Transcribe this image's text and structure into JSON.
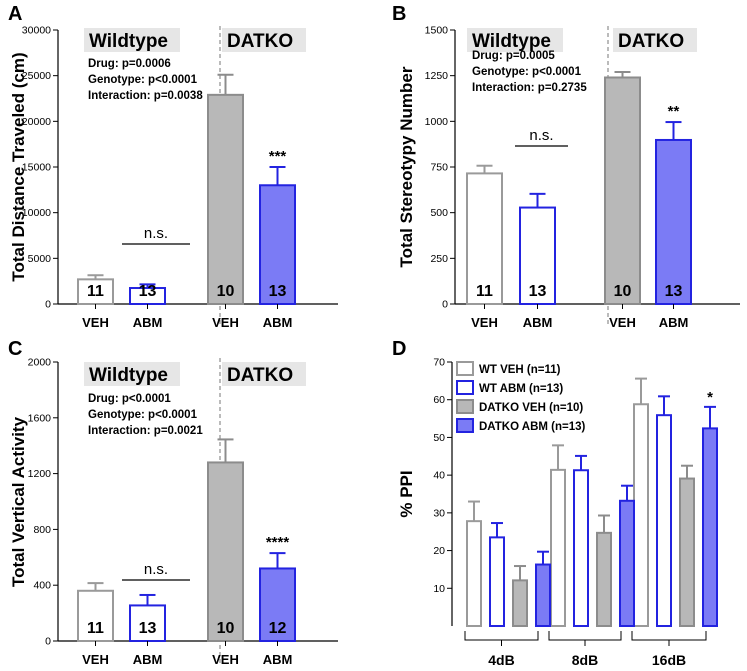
{
  "colors": {
    "wt_veh_stroke": "#9a9a9a",
    "wt_veh_fill": "#ffffff",
    "wt_abm_stroke": "#2323e0",
    "wt_abm_fill": "#ffffff",
    "datko_veh_stroke": "#8c8c8c",
    "datko_veh_fill": "#b8b8b8",
    "datko_abm_stroke": "#2323e0",
    "datko_abm_fill": "#7b7bf5",
    "group_label_bg": "#e6e6e6",
    "divider": "#777777"
  },
  "chart_data": [
    {
      "panel": "A",
      "type": "bar",
      "ylabel": "Total Distance Traveled (cm)",
      "ylim": [
        0,
        30000
      ],
      "yticks": [
        0,
        5000,
        10000,
        15000,
        20000,
        25000,
        30000
      ],
      "categories": [
        "VEH",
        "ABM",
        "VEH",
        "ABM"
      ],
      "values": [
        2700,
        1750,
        22900,
        13000
      ],
      "errors": [
        450,
        400,
        2200,
        2000
      ],
      "n_labels": [
        "11",
        "13",
        "10",
        "13"
      ],
      "groups": [
        "Wildtype",
        "DATKO"
      ],
      "stats": [
        "Drug: p=0.0006",
        "Genotype: p<0.0001",
        "Interaction: p=0.0038"
      ],
      "ns_label": "n.s.",
      "significance": {
        "bar": 3,
        "label": "***"
      }
    },
    {
      "panel": "B",
      "type": "bar",
      "ylabel": "Total Stereotypy Number",
      "ylim": [
        0,
        1500
      ],
      "yticks": [
        0,
        250,
        500,
        750,
        1000,
        1250,
        1500
      ],
      "categories": [
        "VEH",
        "ABM",
        "VEH",
        "ABM"
      ],
      "values": [
        715,
        528,
        1240,
        898
      ],
      "errors": [
        42,
        75,
        30,
        98
      ],
      "n_labels": [
        "11",
        "13",
        "10",
        "13"
      ],
      "groups": [
        "Wildtype",
        "DATKO"
      ],
      "stats": [
        "Drug: p=0.0005",
        "Genotype: p<0.0001",
        "Interaction: p=0.2735"
      ],
      "ns_label": "n.s.",
      "significance": {
        "bar": 3,
        "label": "**"
      }
    },
    {
      "panel": "C",
      "type": "bar",
      "ylabel": "Total Vertical Activity",
      "ylim": [
        0,
        2000
      ],
      "yticks": [
        0,
        400,
        800,
        1200,
        1600,
        2000
      ],
      "categories": [
        "VEH",
        "ABM",
        "VEH",
        "ABM"
      ],
      "values": [
        360,
        255,
        1280,
        520
      ],
      "errors": [
        55,
        75,
        165,
        110
      ],
      "n_labels": [
        "11",
        "13",
        "10",
        "12"
      ],
      "groups": [
        "Wildtype",
        "DATKO"
      ],
      "stats": [
        "Drug: p<0.0001",
        "Genotype: p<0.0001",
        "Interaction: p=0.0021"
      ],
      "ns_label": "n.s.",
      "significance": {
        "bar": 3,
        "label": "****"
      }
    },
    {
      "panel": "D",
      "type": "bar",
      "ylabel": "% PPI",
      "ylim": [
        0,
        70
      ],
      "yticks": [
        10,
        20,
        30,
        40,
        50,
        60,
        70
      ],
      "categories": [
        "4dB",
        "8dB",
        "16dB"
      ],
      "series": [
        {
          "name": "WT VEH (n=11)",
          "values": [
            27.8,
            41.4,
            58.8
          ],
          "errors": [
            5.2,
            6.5,
            6.8
          ]
        },
        {
          "name": "WT ABM (n=13)",
          "values": [
            23.5,
            41.3,
            55.9
          ],
          "errors": [
            3.8,
            3.8,
            5.0
          ]
        },
        {
          "name": "DATKO VEH (n=10)",
          "values": [
            12.1,
            24.7,
            39.1
          ],
          "errors": [
            3.8,
            4.6,
            3.4
          ]
        },
        {
          "name": "DATKO ABM (n=13)",
          "values": [
            16.3,
            33.2,
            52.4
          ],
          "errors": [
            3.4,
            4.0,
            5.7
          ]
        }
      ],
      "significance": {
        "category": 2,
        "series": 3,
        "label": "*"
      }
    }
  ]
}
